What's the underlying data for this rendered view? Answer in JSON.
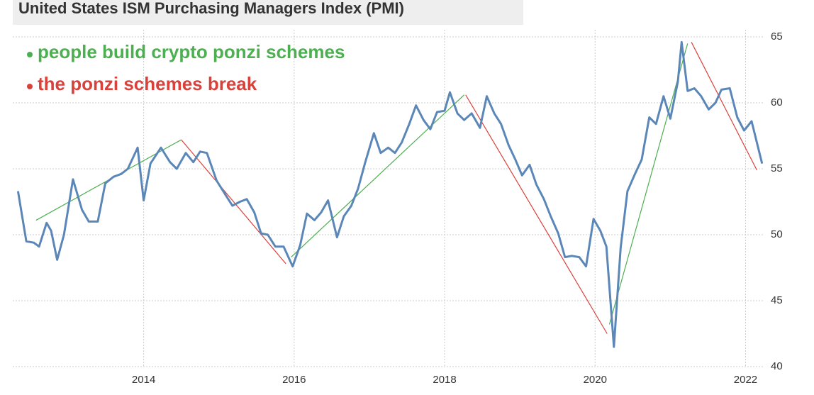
{
  "chart_data": {
    "type": "line",
    "title": "United States ISM Purchasing Managers Index (PMI)",
    "annotations": [
      {
        "text": "people build crypto ponzi schemes",
        "color": "#4caf50"
      },
      {
        "text": "the ponzi schemes break",
        "color": "#d9413b"
      }
    ],
    "x": [
      2012.33,
      2012.44,
      2012.54,
      2012.61,
      2012.71,
      2012.77,
      2012.85,
      2012.94,
      2013.06,
      2013.18,
      2013.27,
      2013.39,
      2013.49,
      2013.6,
      2013.7,
      2013.79,
      2013.92,
      2014.0,
      2014.09,
      2014.23,
      2014.35,
      2014.44,
      2014.56,
      2014.66,
      2014.75,
      2014.84,
      2014.97,
      2015.09,
      2015.18,
      2015.28,
      2015.37,
      2015.47,
      2015.56,
      2015.65,
      2015.75,
      2015.86,
      2015.98,
      2016.08,
      2016.17,
      2016.27,
      2016.36,
      2016.45,
      2016.57,
      2016.66,
      2016.76,
      2016.85,
      2016.94,
      2017.06,
      2017.15,
      2017.25,
      2017.34,
      2017.43,
      2017.53,
      2017.62,
      2017.72,
      2017.81,
      2017.9,
      2018.0,
      2018.07,
      2018.17,
      2018.26,
      2018.36,
      2018.47,
      2018.56,
      2018.66,
      2018.75,
      2018.85,
      2018.94,
      2019.03,
      2019.13,
      2019.22,
      2019.32,
      2019.41,
      2019.51,
      2019.6,
      2019.69,
      2019.79,
      2019.88,
      2019.98,
      2020.07,
      2020.15,
      2020.25,
      2020.34,
      2020.43,
      2020.53,
      2020.62,
      2020.72,
      2020.81,
      2020.91,
      2021.0,
      2021.1,
      2021.15,
      2021.23,
      2021.32,
      2021.41,
      2021.51,
      2021.6,
      2021.68,
      2021.79,
      2021.89,
      2021.98,
      2022.08,
      2022.22
    ],
    "series": [
      {
        "name": "PMI",
        "color": "#5b87b8",
        "values": [
          53.3,
          49.5,
          49.4,
          49.1,
          50.9,
          50.3,
          48.1,
          50.0,
          54.2,
          51.9,
          51.0,
          51.0,
          53.9,
          54.4,
          54.6,
          55.0,
          56.6,
          52.6,
          55.4,
          56.6,
          55.5,
          55.0,
          56.2,
          55.5,
          56.3,
          56.2,
          54.1,
          53.0,
          52.2,
          52.5,
          52.7,
          51.7,
          50.1,
          50.0,
          49.1,
          49.1,
          47.6,
          49.2,
          51.6,
          51.1,
          51.7,
          52.6,
          49.8,
          51.4,
          52.2,
          53.5,
          55.4,
          57.7,
          56.2,
          56.6,
          56.2,
          57.0,
          58.4,
          59.8,
          58.7,
          58.0,
          59.3,
          59.4,
          60.8,
          59.2,
          58.7,
          59.2,
          58.1,
          60.5,
          59.2,
          58.4,
          56.8,
          55.7,
          54.5,
          55.3,
          53.8,
          52.7,
          51.4,
          50.1,
          48.3,
          48.4,
          48.3,
          47.6,
          51.2,
          50.3,
          49.1,
          41.5,
          49.0,
          53.3,
          54.6,
          55.7,
          58.9,
          58.4,
          60.5,
          58.8,
          61.6,
          64.6,
          60.9,
          61.1,
          60.5,
          59.5,
          60.0,
          61.0,
          61.1,
          58.9,
          57.9,
          58.6,
          55.4
        ]
      }
    ],
    "trend_lines": [
      {
        "x": [
          2012.57,
          2014.5
        ],
        "y": [
          51.1,
          57.2
        ],
        "color": "#4caf50"
      },
      {
        "x": [
          2014.5,
          2015.89
        ],
        "y": [
          57.2,
          47.8
        ],
        "color": "#d9413b"
      },
      {
        "x": [
          2015.96,
          2018.26
        ],
        "y": [
          48.3,
          60.6
        ],
        "color": "#4caf50"
      },
      {
        "x": [
          2018.28,
          2020.16
        ],
        "y": [
          60.6,
          42.5
        ],
        "color": "#d9413b"
      },
      {
        "x": [
          2020.19,
          2021.23
        ],
        "y": [
          43.2,
          64.5
        ],
        "color": "#4caf50"
      },
      {
        "x": [
          2021.28,
          2022.15
        ],
        "y": [
          64.6,
          54.9
        ],
        "color": "#d9413b"
      }
    ],
    "xlim": [
      2012.26,
      2022.25
    ],
    "xticks": [
      2014,
      2016,
      2018,
      2020,
      2022
    ],
    "ylim": [
      40,
      65
    ],
    "yticks": [
      40,
      45,
      50,
      55,
      60,
      65
    ],
    "grid": true
  }
}
